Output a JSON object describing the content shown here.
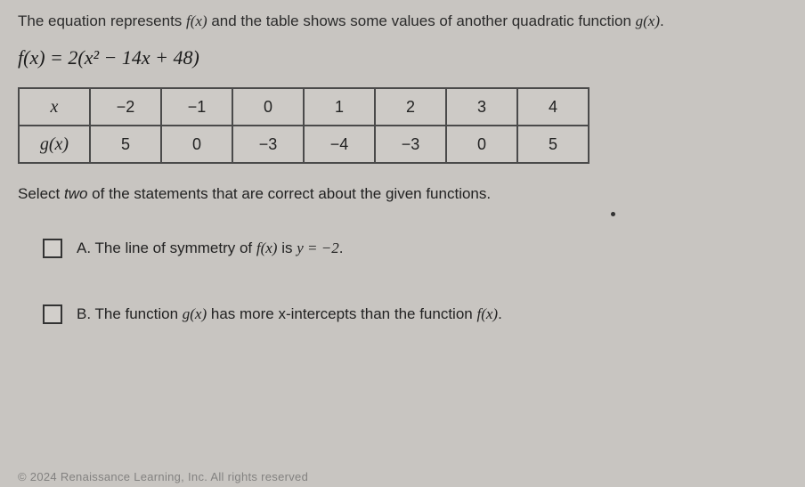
{
  "intro": {
    "part1": "The equation represents ",
    "fx": "f(x)",
    "part2": " and the table shows some values of another quadratic function ",
    "gx": "g(x)",
    "part3": "."
  },
  "equation_text": "f(x) = 2(x² − 14x + 48)",
  "table": {
    "row1_label": "x",
    "row1": [
      "−2",
      "−1",
      "0",
      "1",
      "2",
      "3",
      "4"
    ],
    "row2_label": "g(x)",
    "row2": [
      "5",
      "0",
      "−3",
      "−4",
      "−3",
      "0",
      "5"
    ]
  },
  "instruction": {
    "part1": "Select ",
    "ital": "two",
    "part2": " of the statements that are correct about the given functions."
  },
  "options": {
    "a": {
      "letter": "A.",
      "part1": " The line of symmetry of ",
      "fx": "f(x)",
      "part2": " is ",
      "eq": "y = −2",
      "part3": "."
    },
    "b": {
      "letter": "B.",
      "part1": " The function ",
      "gx": "g(x)",
      "part2": " has more x-intercepts than the function ",
      "fx": "f(x)",
      "part3": "."
    }
  },
  "footer_text": "© 2024 Renaissance Learning, Inc. All rights reserved",
  "colors": {
    "background": "#c8c5c1",
    "text": "#222222",
    "border": "#4a4a4a"
  }
}
